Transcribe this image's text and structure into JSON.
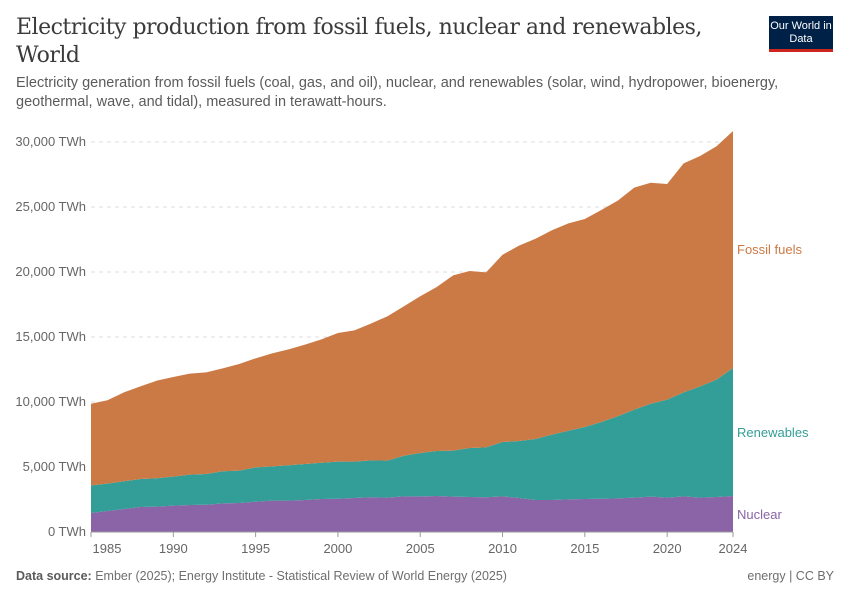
{
  "header": {
    "title": "Electricity production from fossil fuels, nuclear and renewables, World",
    "subtitle": "Electricity generation from fossil fuels (coal, gas, and oil), nuclear, and renewables (solar, wind, hydropower, bioenergy, geothermal, wave, and tidal), measured in terawatt-hours.",
    "logo": "Our World in Data"
  },
  "footer": {
    "source_label": "Data source:",
    "source": "Ember (2025); Energy Institute - Statistical Review of World Energy (2025)",
    "license": "energy | CC BY"
  },
  "colors": {
    "fossil": "#cc7a45",
    "renewables": "#339e97",
    "nuclear": "#8a64a6",
    "grid": "#dddddd"
  },
  "chart_data": {
    "type": "area",
    "stacked": true,
    "title": "Electricity production from fossil fuels, nuclear and renewables, World",
    "xlabel": "",
    "ylabel": "",
    "xlim": [
      1985,
      2024
    ],
    "ylim": [
      0,
      30000
    ],
    "unit": "TWh",
    "grid": true,
    "legend": "right-inline",
    "y_ticks": [
      0,
      5000,
      10000,
      15000,
      20000,
      25000,
      30000
    ],
    "y_tick_labels": [
      "0 TWh",
      "5,000 TWh",
      "10,000 TWh",
      "15,000 TWh",
      "20,000 TWh",
      "25,000 TWh",
      "30,000 TWh"
    ],
    "x_ticks": [
      1985,
      1990,
      1995,
      2000,
      2005,
      2010,
      2015,
      2020,
      2024
    ],
    "x_tick_labels": [
      "1985",
      "1990",
      "1995",
      "2000",
      "2005",
      "2010",
      "2015",
      "2020",
      "2024"
    ],
    "x": [
      1985,
      1986,
      1987,
      1988,
      1989,
      1990,
      1991,
      1992,
      1993,
      1994,
      1995,
      1996,
      1997,
      1998,
      1999,
      2000,
      2001,
      2002,
      2003,
      2004,
      2005,
      2006,
      2007,
      2008,
      2009,
      2010,
      2011,
      2012,
      2013,
      2014,
      2015,
      2016,
      2017,
      2018,
      2019,
      2020,
      2021,
      2022,
      2023,
      2024
    ],
    "series": [
      {
        "name": "Nuclear",
        "color": "#8a64a6",
        "values": [
          1460,
          1620,
          1770,
          1920,
          1950,
          2030,
          2080,
          2100,
          2200,
          2230,
          2330,
          2410,
          2410,
          2460,
          2540,
          2560,
          2620,
          2670,
          2640,
          2740,
          2740,
          2770,
          2720,
          2690,
          2670,
          2740,
          2620,
          2460,
          2460,
          2510,
          2540,
          2560,
          2590,
          2640,
          2720,
          2640,
          2740,
          2640,
          2690,
          2770
        ]
      },
      {
        "name": "Renewables",
        "color": "#339e97",
        "values": [
          2130,
          2100,
          2130,
          2160,
          2180,
          2230,
          2330,
          2360,
          2470,
          2490,
          2640,
          2640,
          2720,
          2770,
          2790,
          2850,
          2790,
          2840,
          2850,
          3130,
          3340,
          3460,
          3540,
          3770,
          3840,
          4180,
          4380,
          4690,
          5030,
          5280,
          5540,
          5900,
          6310,
          6770,
          7150,
          7540,
          8000,
          8560,
          9030,
          9850
        ]
      },
      {
        "name": "Fossil fuels",
        "color": "#cc7a45",
        "values": [
          6280,
          6410,
          6840,
          7120,
          7510,
          7660,
          7770,
          7820,
          7920,
          8200,
          8390,
          8690,
          8920,
          9180,
          9490,
          9900,
          10100,
          10520,
          11100,
          11490,
          12050,
          12620,
          13480,
          13620,
          13460,
          14410,
          15030,
          15410,
          15720,
          15950,
          16000,
          16310,
          16590,
          17080,
          17000,
          16590,
          17620,
          17720,
          17950,
          18230
        ]
      }
    ]
  }
}
